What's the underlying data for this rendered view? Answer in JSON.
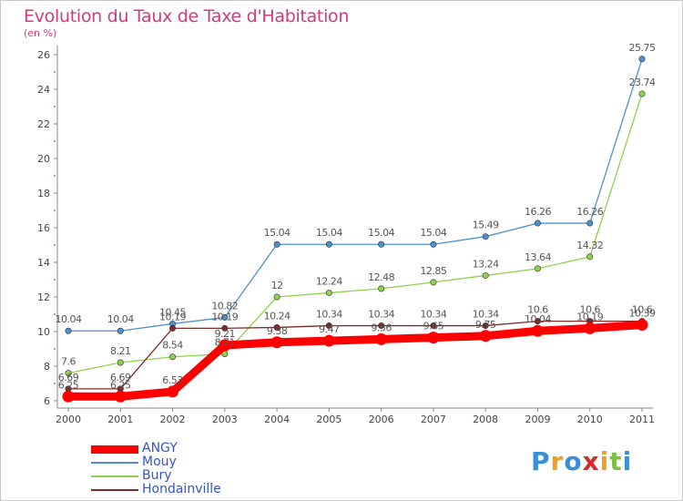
{
  "chart_data": {
    "type": "line",
    "title": "Evolution du Taux de Taxe d'Habitation",
    "unit": "(en %)",
    "x": [
      "2000",
      "2001",
      "2002",
      "2003",
      "2004",
      "2005",
      "2006",
      "2007",
      "2008",
      "2009",
      "2010",
      "2011"
    ],
    "ylim": [
      6,
      26
    ],
    "yticks": [
      "6",
      "8",
      "10",
      "12",
      "14",
      "16",
      "18",
      "20",
      "22",
      "24",
      "26"
    ],
    "grid": false,
    "legend": "bottom-left",
    "series": [
      {
        "name": "ANGY",
        "color": "#ff0000",
        "values": [
          6.25,
          6.25,
          6.53,
          9.21,
          9.38,
          9.47,
          9.56,
          9.65,
          9.75,
          10.04,
          10.19,
          10.39
        ],
        "labels": [
          "6.25",
          "6.25",
          "6.53",
          "9.21",
          "9.38",
          "9.47",
          "9.56",
          "9.65",
          "9.75",
          "10.04",
          "10.19",
          "10.39"
        ]
      },
      {
        "name": "Mouy",
        "color": "#4f90cf",
        "values": [
          10.04,
          10.04,
          10.45,
          10.82,
          15.04,
          15.04,
          15.04,
          15.04,
          15.49,
          16.26,
          16.26,
          25.75
        ],
        "labels": [
          "10.04",
          "10.04",
          "10.45",
          "10.82",
          "15.04",
          "15.04",
          "15.04",
          "15.04",
          "15.49",
          "16.26",
          "16.26",
          "25.75"
        ]
      },
      {
        "name": "Bury",
        "color": "#8fd24d",
        "values": [
          7.6,
          8.21,
          8.54,
          8.71,
          12,
          12.24,
          12.48,
          12.85,
          13.24,
          13.64,
          14.32,
          23.74
        ],
        "labels": [
          "7.6",
          "8.21",
          "8.54",
          "8.71",
          "12",
          "12.24",
          "12.48",
          "12.85",
          "13.24",
          "13.64",
          "14.32",
          "23.74"
        ]
      },
      {
        "name": "Hondainville",
        "color": "#7a2b2b",
        "values": [
          6.69,
          6.69,
          10.19,
          10.19,
          10.24,
          10.34,
          10.34,
          10.34,
          10.34,
          10.6,
          10.6,
          10.6
        ],
        "labels": [
          "6.69",
          "6.69",
          "10.19",
          "10.19",
          "10.24",
          "10.34",
          "10.34",
          "10.34",
          "10.34",
          "10.6",
          "10.6",
          "10.6"
        ]
      }
    ]
  },
  "logo": {
    "letters": [
      "P",
      "r",
      "o",
      "x",
      "i",
      "t",
      "i"
    ],
    "colors": [
      "#3a8fd6",
      "#f0a020",
      "#3a8fd6",
      "#d62a2a",
      "#f0a020",
      "#7cc242",
      "#3a8fd6"
    ]
  }
}
